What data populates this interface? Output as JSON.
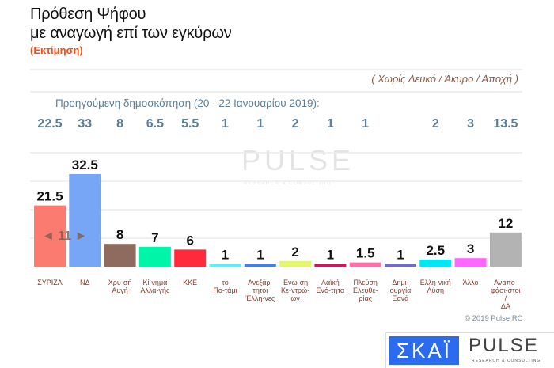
{
  "header": {
    "title_line1": "Πρόθεση Ψήφου",
    "title_line2": "με αναγωγή επί των εγκύρων",
    "subtitle": "(Εκτίμηση)"
  },
  "note": "( Χωρίς Λευκό / Άκυρο / Αποχή )",
  "previous_label": "Προηγούμενη δημοσκόπηση (20 - 22 Ιανουαρίου 2019):",
  "lead_indicator": {
    "text": "◄ 11 ►"
  },
  "watermark": {
    "text": "PULSE",
    "sub": "RESEARCH & CONSULTING"
  },
  "copyright": "© 2019 Pulse RC",
  "logos": {
    "skai": "ΣΚΑΪ",
    "pulse": "PULSE",
    "pulse_sub": "RESEARCH & CONSULTING"
  },
  "chart_data": {
    "type": "bar",
    "categories": [
      "ΣΥΡΙΖΑ",
      "ΝΔ",
      "Χρυ-σή Αυγή",
      "Κί-νημα Αλλα-γής",
      "ΚΚΕ",
      "το Πο-τάμι",
      "Ανεξάρ-τητοι Έλλη-νες",
      "Ένω-ση Κε-ντρώ-ων",
      "Λαϊκή Ενό-τητα",
      "Πλεύση Ελευθε-ρίας",
      "Δημι-ουργία Ξανά",
      "Ελλη-νική Λύση",
      "Άλλο",
      "Αναπο-φάσι-στοι / ΔΑ"
    ],
    "values": [
      21.5,
      32.5,
      8,
      7,
      6,
      1,
      1,
      2,
      1,
      1.5,
      1,
      2.5,
      3,
      12
    ],
    "value_labels": [
      "21.5",
      "32.5",
      "8",
      "7",
      "6",
      "1",
      "1",
      "2",
      "1",
      "1.5",
      "1",
      "2.5",
      "3",
      "12"
    ],
    "previous": [
      "22.5",
      "33",
      "8",
      "6.5",
      "5.5",
      "1",
      "1",
      "2",
      "1",
      "1",
      "",
      "2",
      "3",
      "13.5"
    ],
    "colors": [
      "#fb7b70",
      "#77a6f7",
      "#8e6b5e",
      "#00f5a8",
      "#ff2a3c",
      "#5cf0f5",
      "#3f7ff2",
      "#e3f56a",
      "#d6105c",
      "#ff70a8",
      "#6d6bd0",
      "#00e6f5",
      "#ff66ff",
      "#b3b3b3"
    ],
    "ylim": [
      0,
      40
    ],
    "grid": true
  }
}
